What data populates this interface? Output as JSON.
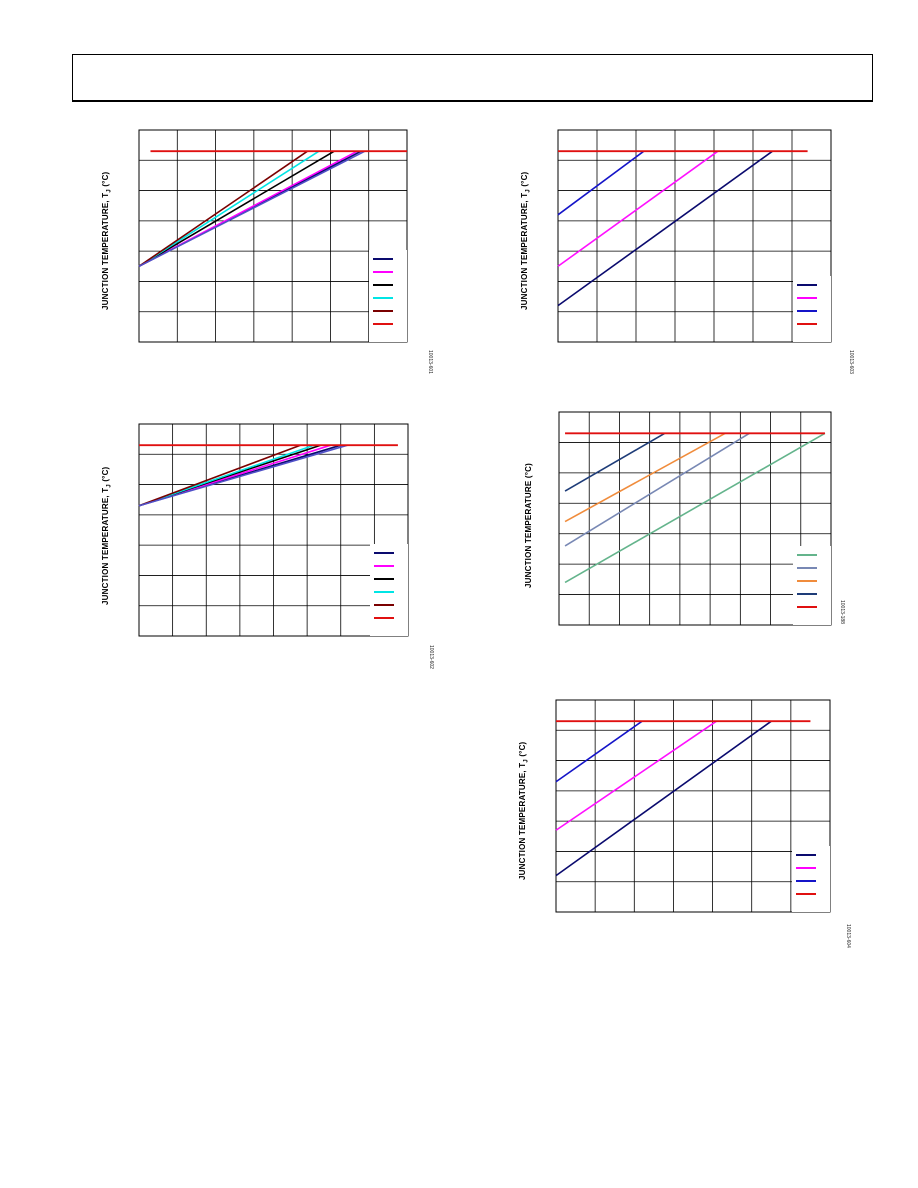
{
  "page": {
    "header": ""
  },
  "chart_data": [
    {
      "id": "fig-top-left",
      "type": "line",
      "ylabel": "JUNCTION TEMPERATURE, T",
      "ylabel_sub": "J",
      "ylabel_unit": " (°C)",
      "figure_id": "10013-601",
      "grid": true,
      "xlim": [
        0,
        7
      ],
      "ylim": [
        0,
        7
      ],
      "xgrid_count": 7,
      "ygrid_count": 7,
      "legend_placement": "bottom-right",
      "limit_line": {
        "color": "#e01010",
        "y": 6.3,
        "x": [
          0.3,
          7
        ]
      },
      "series": [
        {
          "color": "#0a0a6e",
          "points": [
            [
              0,
              2.5
            ],
            [
              5.8,
              6.3
            ]
          ]
        },
        {
          "color": "#ff00ff",
          "points": [
            [
              0,
              2.5
            ],
            [
              5.7,
              6.3
            ]
          ]
        },
        {
          "color": "#000000",
          "points": [
            [
              0,
              2.5
            ],
            [
              5.1,
              6.3
            ]
          ]
        },
        {
          "color": "#00e5e5",
          "points": [
            [
              0,
              2.5
            ],
            [
              4.7,
              6.3
            ]
          ]
        },
        {
          "color": "#7a0000",
          "points": [
            [
              0,
              2.5
            ],
            [
              4.4,
              6.3
            ]
          ]
        },
        {
          "color": "#5050c8",
          "points": [
            [
              0,
              2.5
            ],
            [
              5.9,
              6.3
            ]
          ]
        }
      ],
      "legend": [
        {
          "color": "#0a0a6e"
        },
        {
          "color": "#ff00ff"
        },
        {
          "color": "#000000"
        },
        {
          "color": "#00e5e5"
        },
        {
          "color": "#7a0000"
        },
        {
          "color": "#e01010"
        }
      ]
    },
    {
      "id": "fig-top-right",
      "type": "line",
      "ylabel": "JUNCTION TEMPERATURE, T",
      "ylabel_sub": "J",
      "ylabel_unit": " (°C)",
      "figure_id": "10013-603",
      "grid": true,
      "xlim": [
        0,
        7
      ],
      "ylim": [
        0,
        7
      ],
      "xgrid_count": 7,
      "ygrid_count": 7,
      "legend_placement": "bottom-right",
      "limit_line": {
        "color": "#e01010",
        "y": 6.3,
        "x": [
          0,
          6.4
        ]
      },
      "series": [
        {
          "color": "#1414c8",
          "points": [
            [
              0,
              4.2
            ],
            [
              2.2,
              6.3
            ]
          ]
        },
        {
          "color": "#ff10ff",
          "points": [
            [
              0,
              2.5
            ],
            [
              4.1,
              6.3
            ]
          ]
        },
        {
          "color": "#0a0a6e",
          "points": [
            [
              0,
              1.2
            ],
            [
              5.5,
              6.3
            ]
          ]
        }
      ],
      "legend": [
        {
          "color": "#0a0a6e"
        },
        {
          "color": "#ff00ff"
        },
        {
          "color": "#1414c8"
        },
        {
          "color": "#e01010"
        }
      ]
    },
    {
      "id": "fig-mid-left",
      "type": "line",
      "ylabel": "JUNCTION TEMPERATURE, T",
      "ylabel_sub": "J",
      "ylabel_unit": " (°C)",
      "figure_id": "10013-602",
      "grid": true,
      "xlim": [
        0,
        8
      ],
      "ylim": [
        0,
        7
      ],
      "xgrid_count": 8,
      "ygrid_count": 7,
      "legend_placement": "bottom-right",
      "limit_line": {
        "color": "#e01010",
        "y": 6.3,
        "x": [
          0,
          7.7
        ]
      },
      "series": [
        {
          "color": "#0a0a6e",
          "points": [
            [
              0,
              4.3
            ],
            [
              6.0,
              6.3
            ]
          ]
        },
        {
          "color": "#ff00ff",
          "points": [
            [
              0,
              4.3
            ],
            [
              5.7,
              6.3
            ]
          ]
        },
        {
          "color": "#000000",
          "points": [
            [
              0,
              4.3
            ],
            [
              5.4,
              6.3
            ]
          ]
        },
        {
          "color": "#00e5e5",
          "points": [
            [
              0,
              4.3
            ],
            [
              5.2,
              6.3
            ]
          ]
        },
        {
          "color": "#7a0000",
          "points": [
            [
              0,
              4.3
            ],
            [
              4.8,
              6.3
            ]
          ]
        },
        {
          "color": "#5050c8",
          "points": [
            [
              0,
              4.3
            ],
            [
              6.2,
              6.3
            ]
          ]
        }
      ],
      "legend": [
        {
          "color": "#0a0a6e"
        },
        {
          "color": "#ff00ff"
        },
        {
          "color": "#000000"
        },
        {
          "color": "#00e5e5"
        },
        {
          "color": "#7a0000"
        },
        {
          "color": "#e01010"
        }
      ]
    },
    {
      "id": "fig-mid-right",
      "type": "line",
      "ylabel": "JUNCTION TEMPERATURE",
      "ylabel_sub": "",
      "ylabel_unit": " (°C)",
      "figure_id": "10013-188",
      "grid": true,
      "xlim": [
        0,
        9
      ],
      "ylim": [
        0,
        7
      ],
      "xgrid_count": 9,
      "ygrid_count": 7,
      "legend_placement": "bottom-right",
      "limit_line": {
        "color": "#e01010",
        "y": 6.3,
        "x": [
          0.2,
          8.8
        ]
      },
      "series": [
        {
          "color": "#1e3c78",
          "points": [
            [
              0.2,
              4.4
            ],
            [
              3.5,
              6.3
            ]
          ]
        },
        {
          "color": "#f08c3c",
          "points": [
            [
              0.2,
              3.4
            ],
            [
              5.5,
              6.3
            ]
          ]
        },
        {
          "color": "#7888b4",
          "points": [
            [
              0.2,
              2.6
            ],
            [
              6.3,
              6.3
            ]
          ]
        },
        {
          "color": "#64b48c",
          "points": [
            [
              0.2,
              1.4
            ],
            [
              8.8,
              6.3
            ]
          ]
        }
      ],
      "legend": [
        {
          "color": "#64b48c"
        },
        {
          "color": "#7888b4"
        },
        {
          "color": "#f08c3c"
        },
        {
          "color": "#1e3c78"
        },
        {
          "color": "#e01010"
        }
      ]
    },
    {
      "id": "fig-bottom-right",
      "type": "line",
      "ylabel": "JUNCTION TEMPERATURE, T",
      "ylabel_sub": "J",
      "ylabel_unit": " (°C)",
      "figure_id": "10013-604",
      "grid": true,
      "xlim": [
        0,
        7
      ],
      "ylim": [
        0,
        7
      ],
      "xgrid_count": 7,
      "ygrid_count": 7,
      "legend_placement": "bottom-right",
      "limit_line": {
        "color": "#e01010",
        "y": 6.3,
        "x": [
          0,
          6.5
        ]
      },
      "series": [
        {
          "color": "#1414c8",
          "points": [
            [
              0,
              4.3
            ],
            [
              2.2,
              6.3
            ]
          ]
        },
        {
          "color": "#ff10ff",
          "points": [
            [
              0,
              2.7
            ],
            [
              4.1,
              6.3
            ]
          ]
        },
        {
          "color": "#0a0a6e",
          "points": [
            [
              0,
              1.2
            ],
            [
              5.5,
              6.3
            ]
          ]
        }
      ],
      "legend": [
        {
          "color": "#0a0a6e"
        },
        {
          "color": "#ff00ff"
        },
        {
          "color": "#1414c8"
        },
        {
          "color": "#e01010"
        }
      ]
    }
  ]
}
